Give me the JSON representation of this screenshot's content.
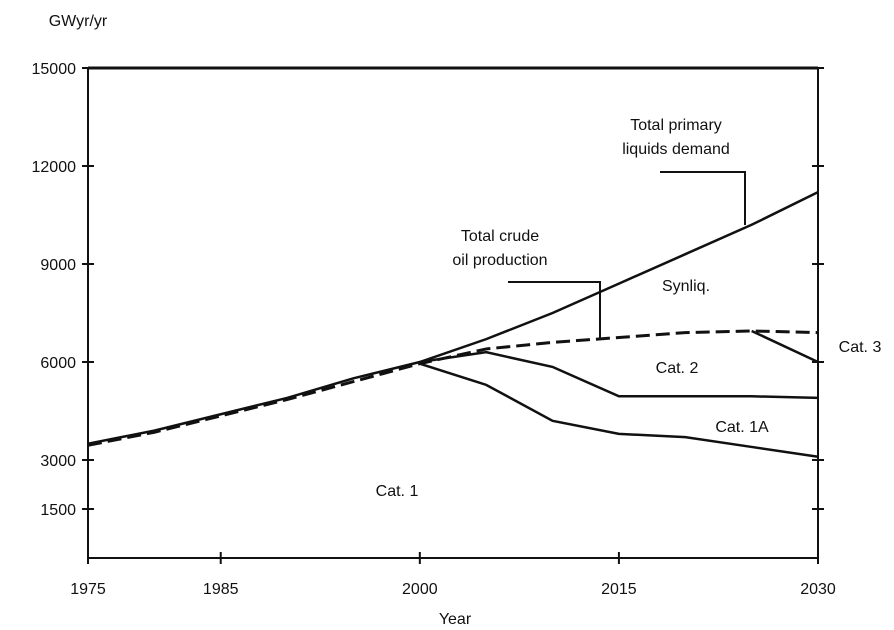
{
  "chart_data": {
    "type": "line",
    "y_label": "GWyr/yr",
    "x_label": "Year",
    "x": [
      1975,
      1980,
      1985,
      1990,
      1995,
      2000,
      2005,
      2010,
      2015,
      2020,
      2025,
      2030
    ],
    "xlim": [
      1975,
      2030
    ],
    "xticks": [
      1975,
      1985,
      2000,
      2015,
      2030
    ],
    "ylim": [
      0,
      15000
    ],
    "yticks": [
      1500,
      3000,
      6000,
      9000,
      12000,
      15000
    ],
    "series": [
      {
        "color": "#111111",
        "dash": false,
        "values": [
          3500,
          3900,
          4400,
          4900,
          5500,
          6000,
          6700,
          7500,
          8400,
          9300,
          10200,
          11200
        ]
      },
      {
        "color": "#111111",
        "dash": true,
        "values": [
          3450,
          3850,
          4350,
          4850,
          5400,
          5950,
          6400,
          6600,
          6750,
          6900,
          6950,
          6900
        ]
      },
      {
        "color": "#111111",
        "dash": false,
        "values": [
          null,
          null,
          null,
          null,
          null,
          null,
          null,
          null,
          null,
          null,
          6950,
          6000
        ]
      },
      {
        "color": "#111111",
        "dash": false,
        "values": [
          null,
          null,
          null,
          null,
          null,
          6000,
          6300,
          5850,
          4950,
          4950,
          4950,
          4900
        ]
      },
      {
        "color": "#111111",
        "dash": false,
        "values": [
          null,
          null,
          null,
          null,
          null,
          5950,
          5300,
          4200,
          3800,
          3700,
          3400,
          3100
        ]
      }
    ],
    "annotations": [
      {
        "lines": [
          "Total primary",
          "liquids demand"
        ]
      },
      {
        "lines": [
          "Total crude",
          "oil production"
        ]
      },
      {
        "lines": [
          "Synliq."
        ]
      },
      {
        "lines": [
          "Cat. 3"
        ]
      },
      {
        "lines": [
          "Cat. 2"
        ]
      },
      {
        "lines": [
          "Cat. 1A"
        ]
      },
      {
        "lines": [
          "Cat. 1"
        ]
      }
    ]
  }
}
